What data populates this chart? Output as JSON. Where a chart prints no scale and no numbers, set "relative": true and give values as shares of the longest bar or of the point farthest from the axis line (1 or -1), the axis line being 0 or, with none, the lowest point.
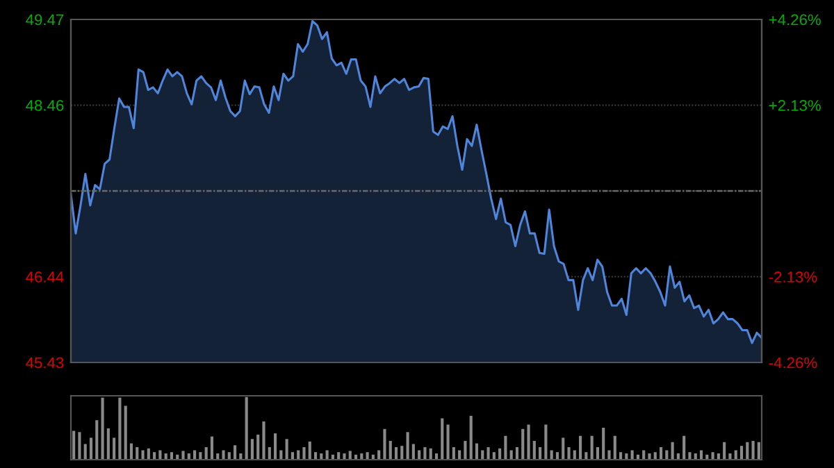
{
  "chart_data": [
    {
      "type": "area",
      "color": "#4f86dc",
      "grid": "y",
      "categories": [
        null,
        null,
        null,
        null,
        null,
        null,
        null,
        null,
        null,
        null,
        null,
        null,
        null,
        null,
        null,
        null,
        null,
        null,
        null,
        null,
        null,
        null,
        null,
        null,
        null,
        null,
        null,
        null,
        null,
        null,
        null,
        null,
        null,
        null,
        null,
        null,
        null,
        null,
        null,
        null,
        null,
        null,
        null,
        null,
        null,
        null,
        null,
        null,
        null,
        null,
        null,
        null,
        null,
        null,
        null,
        null,
        null,
        null,
        null,
        null,
        null,
        null,
        null,
        null,
        null,
        null,
        null,
        null,
        null,
        null,
        null,
        null,
        null,
        null,
        null,
        null,
        null,
        null,
        null,
        null,
        null,
        null,
        null,
        null,
        null,
        null,
        null,
        null,
        null,
        null,
        null,
        null,
        null,
        null,
        null,
        null,
        null,
        null,
        null,
        null,
        null,
        null,
        null,
        null,
        null,
        null,
        null,
        null,
        null,
        null,
        null,
        null,
        null,
        null,
        null,
        null,
        null,
        null,
        null,
        null,
        null,
        null,
        null,
        null,
        null,
        null,
        null,
        null,
        null,
        null,
        null,
        null,
        null,
        null,
        null,
        null,
        null,
        null,
        null,
        null,
        null,
        null,
        null,
        null
      ],
      "ylim": [
        45.43,
        49.47
      ],
      "yticks": [
        45.43,
        46.44,
        {
          "value": 47.45,
          "label": null
        },
        48.46,
        49.47
      ],
      "y2lim": [
        -4.26,
        4.26
      ],
      "y2ticks": [
        {
          "value": -4.26,
          "label": "-4.26%"
        },
        {
          "value": -2.13,
          "label": "-2.13%"
        },
        {
          "value": 0,
          "label": null
        },
        {
          "value": 2.13,
          "label": "+2.13%"
        },
        {
          "value": 4.26,
          "label": "+4.26%"
        }
      ],
      "ref_lines": [
        {
          "axis": "y",
          "value": 47.45,
          "line_style": "dashed"
        }
      ],
      "values": [
        47.41,
        46.95,
        47.28,
        47.65,
        47.28,
        47.52,
        47.47,
        47.77,
        47.82,
        48.19,
        48.54,
        48.44,
        48.44,
        48.19,
        48.88,
        48.85,
        48.64,
        48.67,
        48.6,
        48.75,
        48.88,
        48.8,
        48.85,
        48.8,
        48.6,
        48.47,
        48.75,
        48.8,
        48.72,
        48.67,
        48.52,
        48.75,
        48.55,
        48.39,
        48.33,
        48.39,
        48.75,
        48.59,
        48.68,
        48.67,
        48.47,
        48.37,
        48.68,
        48.52,
        48.83,
        48.75,
        48.8,
        49.18,
        49.09,
        49.18,
        49.45,
        49.4,
        49.24,
        49.32,
        49.01,
        48.93,
        48.96,
        48.83,
        49.0,
        49.0,
        48.75,
        48.68,
        48.44,
        48.8,
        48.6,
        48.68,
        48.72,
        48.77,
        48.72,
        48.77,
        48.64,
        48.67,
        48.68,
        48.78,
        48.77,
        48.15,
        48.11,
        48.21,
        48.18,
        48.33,
        47.98,
        47.7,
        48.06,
        47.98,
        48.23,
        47.93,
        47.65,
        47.36,
        47.12,
        47.36,
        47.08,
        47.05,
        46.8,
        47.05,
        47.21,
        46.95,
        46.95,
        46.72,
        46.71,
        47.23,
        46.8,
        46.62,
        46.59,
        46.4,
        46.4,
        46.05,
        46.4,
        46.54,
        46.4,
        46.64,
        46.56,
        46.26,
        46.1,
        46.1,
        46.18,
        45.99,
        46.48,
        46.54,
        46.48,
        46.54,
        46.48,
        46.38,
        46.26,
        46.1,
        46.56,
        46.31,
        46.38,
        46.15,
        46.22,
        46.07,
        46.1,
        45.97,
        46.05,
        45.89,
        45.94,
        46.02,
        45.94,
        45.94,
        45.89,
        45.81,
        45.81,
        45.66,
        45.78,
        45.72
      ]
    },
    {
      "type": "bar",
      "relative": true,
      "color": "#8a8a8a",
      "categories": [
        null,
        null,
        null,
        null,
        null,
        null,
        null,
        null,
        null,
        null,
        null,
        null,
        null,
        null,
        null,
        null,
        null,
        null,
        null,
        null,
        null,
        null,
        null,
        null,
        null,
        null,
        null,
        null,
        null,
        null,
        null,
        null,
        null,
        null,
        null,
        null,
        null,
        null,
        null,
        null,
        null,
        null,
        null,
        null,
        null,
        null,
        null,
        null,
        null,
        null,
        null,
        null,
        null,
        null,
        null,
        null,
        null,
        null,
        null,
        null,
        null,
        null,
        null,
        null,
        null,
        null,
        null,
        null,
        null,
        null,
        null,
        null,
        null,
        null,
        null,
        null,
        null,
        null,
        null,
        null,
        null,
        null,
        null,
        null,
        null,
        null,
        null,
        null,
        null,
        null,
        null,
        null,
        null,
        null,
        null,
        null,
        null,
        null,
        null,
        null,
        null,
        null,
        null,
        null,
        null,
        null,
        null,
        null,
        null,
        null,
        null,
        null,
        null,
        null,
        null,
        null,
        null,
        null,
        null,
        null
      ],
      "values": [
        0.46,
        0.44,
        0.25,
        0.35,
        0.63,
        0.99,
        0.5,
        0.35,
        0.99,
        0.86,
        0.26,
        0.2,
        0.15,
        0.18,
        0.12,
        0.15,
        0.1,
        0.12,
        0.08,
        0.14,
        0.1,
        0.15,
        0.12,
        0.2,
        0.37,
        0.1,
        0.15,
        0.12,
        0.23,
        0.1,
        1.0,
        0.33,
        0.4,
        0.61,
        0.2,
        0.42,
        0.15,
        0.33,
        0.12,
        0.15,
        0.2,
        0.29,
        0.12,
        0.1,
        0.15,
        0.08,
        0.12,
        0.1,
        0.14,
        0.08,
        0.1,
        0.12,
        0.08,
        0.15,
        0.49,
        0.3,
        0.2,
        0.22,
        0.44,
        0.25,
        0.15,
        0.2,
        0.18,
        0.1,
        0.66,
        0.56,
        0.2,
        0.15,
        0.3,
        0.7,
        0.26,
        0.15,
        0.2,
        0.12,
        0.18,
        0.38,
        0.15,
        0.2,
        0.49,
        0.56,
        0.3,
        0.2,
        0.56,
        0.15,
        0.12,
        0.35,
        0.2,
        0.15,
        0.38,
        0.12,
        0.38,
        0.2,
        0.51,
        0.15,
        0.38,
        0.12,
        0.1,
        0.15,
        0.08,
        0.15,
        0.1,
        0.12,
        0.2,
        0.15,
        0.28,
        0.1,
        0.38,
        0.12,
        0.1,
        0.15,
        0.08,
        0.12,
        0.1,
        0.28,
        0.1,
        0.15,
        0.22,
        0.28,
        0.3,
        0.28
      ]
    }
  ]
}
